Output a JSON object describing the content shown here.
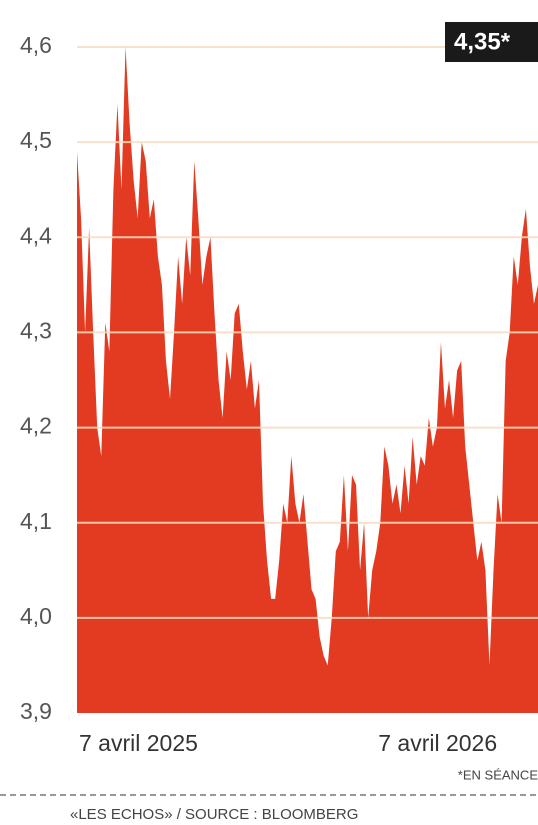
{
  "chart_data": {
    "type": "area",
    "annotation": "4,35*",
    "note": "*EN SÉANCE",
    "source": "«LES ECHOS» / SOURCE : BLOOMBERG",
    "color": "#e23b22",
    "grid": true,
    "ylim": [
      3.9,
      4.6
    ],
    "yticks": [
      {
        "value": 3.9,
        "label": "3,9"
      },
      {
        "value": 4.0,
        "label": "4,0"
      },
      {
        "value": 4.1,
        "label": "4,1"
      },
      {
        "value": 4.2,
        "label": "4,2"
      },
      {
        "value": 4.3,
        "label": "4,3"
      },
      {
        "value": 4.4,
        "label": "4,4"
      },
      {
        "value": 4.5,
        "label": "4,5"
      },
      {
        "value": 4.6,
        "label": "4,6"
      }
    ],
    "categories": [
      "7 avril 2025",
      null,
      null,
      null,
      null,
      null,
      null,
      null,
      null,
      null,
      null,
      null,
      null,
      null,
      null,
      null,
      null,
      null,
      null,
      null,
      null,
      null,
      null,
      null,
      null,
      null,
      null,
      null,
      null,
      null,
      null,
      null,
      null,
      null,
      null,
      null,
      null,
      null,
      null,
      null,
      null,
      null,
      null,
      null,
      null,
      null,
      null,
      null,
      null,
      null,
      null,
      null,
      null,
      null,
      null,
      null,
      null,
      null,
      null,
      null,
      null,
      null,
      null,
      null,
      null,
      null,
      null,
      null,
      null,
      null,
      null,
      null,
      null,
      null,
      "7 avril 2026",
      null,
      null,
      null,
      null,
      null,
      null,
      null,
      null,
      null,
      null,
      null,
      null,
      null,
      null,
      null,
      null,
      null,
      null,
      null,
      null,
      null,
      null,
      null,
      null,
      null,
      null,
      null,
      null,
      null,
      null,
      null,
      null,
      null,
      null,
      null,
      null,
      null,
      null,
      null,
      null
    ],
    "values": [
      4.49,
      4.42,
      4.3,
      4.41,
      4.3,
      4.2,
      4.17,
      4.31,
      4.28,
      4.45,
      4.54,
      4.45,
      4.6,
      4.52,
      4.46,
      4.42,
      4.5,
      4.48,
      4.42,
      4.44,
      4.38,
      4.35,
      4.27,
      4.23,
      4.3,
      4.38,
      4.33,
      4.4,
      4.36,
      4.48,
      4.42,
      4.35,
      4.38,
      4.4,
      4.32,
      4.25,
      4.21,
      4.28,
      4.25,
      4.32,
      4.33,
      4.28,
      4.24,
      4.27,
      4.22,
      4.25,
      4.12,
      4.06,
      4.02,
      4.02,
      4.06,
      4.12,
      4.1,
      4.17,
      4.12,
      4.1,
      4.13,
      4.08,
      4.03,
      4.02,
      3.98,
      3.96,
      3.95,
      4.0,
      4.07,
      4.08,
      4.15,
      4.07,
      4.15,
      4.14,
      4.05,
      4.1,
      4.0,
      4.05,
      4.07,
      4.1,
      4.18,
      4.16,
      4.12,
      4.14,
      4.11,
      4.16,
      4.12,
      4.19,
      4.14,
      4.17,
      4.16,
      4.21,
      4.18,
      4.2,
      4.29,
      4.22,
      4.25,
      4.21,
      4.26,
      4.27,
      4.18,
      4.14,
      4.1,
      4.06,
      4.08,
      4.05,
      3.95,
      4.05,
      4.13,
      4.1,
      4.27,
      4.3,
      4.38,
      4.35,
      4.4,
      4.43,
      4.37,
      4.33,
      4.35
    ]
  }
}
